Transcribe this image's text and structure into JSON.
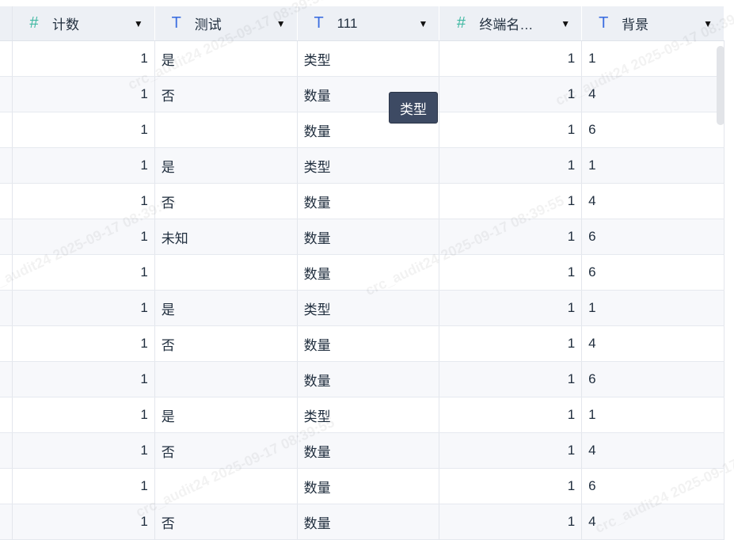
{
  "columns": [
    {
      "label": "计数",
      "type_icon": "hash-icon"
    },
    {
      "label": "测试",
      "type_icon": "text-icon"
    },
    {
      "label": "111",
      "type_icon": "text-icon"
    },
    {
      "label": "终端名…",
      "type_icon": "hash-icon"
    },
    {
      "label": "背景",
      "type_icon": "text-icon"
    }
  ],
  "rows": [
    [
      "1",
      "是",
      "类型",
      "1",
      "1"
    ],
    [
      "1",
      "否",
      "数量",
      "1",
      "4"
    ],
    [
      "1",
      "",
      "数量",
      "1",
      "6"
    ],
    [
      "1",
      "是",
      "类型",
      "1",
      "1"
    ],
    [
      "1",
      "否",
      "数量",
      "1",
      "4"
    ],
    [
      "1",
      "未知",
      "数量",
      "1",
      "6"
    ],
    [
      "1",
      "",
      "数量",
      "1",
      "6"
    ],
    [
      "1",
      "是",
      "类型",
      "1",
      "1"
    ],
    [
      "1",
      "否",
      "数量",
      "1",
      "4"
    ],
    [
      "1",
      "",
      "数量",
      "1",
      "6"
    ],
    [
      "1",
      "是",
      "类型",
      "1",
      "1"
    ],
    [
      "1",
      "否",
      "数量",
      "1",
      "4"
    ],
    [
      "1",
      "",
      "数量",
      "1",
      "6"
    ],
    [
      "1",
      "否",
      "数量",
      "1",
      "4"
    ]
  ],
  "tooltip": "类型",
  "watermark": "crc_audit24 2025-09-17 08:39:55"
}
